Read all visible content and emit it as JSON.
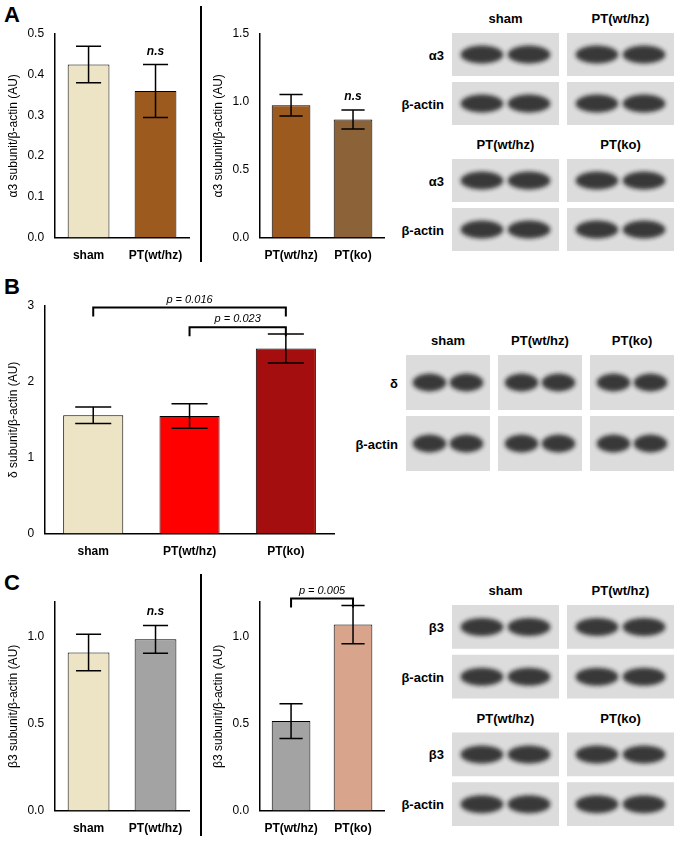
{
  "chart_data": [
    {
      "type": "bar",
      "y_label": "α3 subunit/β-actin (AU)",
      "categories": [
        "sham",
        "PT(wt/hz)"
      ],
      "values": [
        0.425,
        0.36
      ],
      "errors": [
        0.045,
        0.065
      ],
      "colors": [
        "#ede4c6",
        "#9c5a1f"
      ],
      "ylim": [
        0,
        0.5
      ],
      "yticks": [
        {
          "value": 0,
          "label": "0.0"
        },
        0.1,
        0.2,
        0.3,
        0.4,
        0.5
      ],
      "grid": false,
      "annotations": [
        {
          "text": "n.s"
        }
      ]
    },
    {
      "type": "bar",
      "y_label": "α3 subunit/β-actin (AU)",
      "categories": [
        "PT(wt/hz)",
        "PT(ko)"
      ],
      "values": [
        0.975,
        0.87
      ],
      "errors": [
        0.08,
        0.07
      ],
      "colors": [
        "#9c5a1f",
        "#8c6238"
      ],
      "ylim": [
        0,
        1.5
      ],
      "yticks": [
        {
          "value": 0,
          "label": "0.0"
        },
        0.5,
        {
          "value": 1,
          "label": "1.0"
        },
        1.5
      ],
      "grid": false,
      "annotations": [
        {
          "text": "n.s"
        }
      ]
    },
    {
      "type": "bar",
      "y_label": "δ subunit/β-actin (AU)",
      "categories": [
        "sham",
        "PT(wt/hz)",
        "PT(ko)"
      ],
      "values": [
        1.56,
        1.55,
        2.44
      ],
      "errors": [
        0.11,
        0.16,
        0.19
      ],
      "colors": [
        "#ede4c6",
        "#ff0000",
        "#a50e0e"
      ],
      "ylim": [
        0,
        3
      ],
      "yticks": [
        0,
        1,
        2,
        3
      ],
      "grid": false,
      "annotations": [
        {
          "text": "p = 0.016",
          "from": "sham",
          "to": "PT(ko)",
          "y": 2.98
        },
        {
          "text": "p = 0.023",
          "from": "PT(wt/hz)",
          "to": "PT(ko)",
          "y": 2.72
        }
      ]
    },
    {
      "type": "bar",
      "y_label": "β3 subunit/β-actin (AU)",
      "categories": [
        "sham",
        "PT(wt/hz)"
      ],
      "values": [
        0.91,
        0.985
      ],
      "errors": [
        0.105,
        0.08
      ],
      "colors": [
        "#ede4c6",
        "#a3a3a3"
      ],
      "ylim": [
        0,
        1.2
      ],
      "yticks": [
        {
          "value": 0,
          "label": "0.0"
        },
        0.5,
        {
          "value": 1,
          "label": "1.0"
        }
      ],
      "grid": false,
      "annotations": [
        {
          "text": "n.s"
        }
      ]
    },
    {
      "type": "bar",
      "y_label": "β3 subunit/β-actin (AU)",
      "categories": [
        "PT(wt/hz)",
        "PT(ko)"
      ],
      "values": [
        0.515,
        1.07
      ],
      "errors": [
        0.1,
        0.11
      ],
      "colors": [
        "#a3a3a3",
        "#d8a48c"
      ],
      "ylim": [
        0,
        1.2
      ],
      "yticks": [
        {
          "value": 0,
          "label": "0.0"
        },
        0.5,
        {
          "value": 1,
          "label": "1.0"
        }
      ],
      "grid": false,
      "annotations": [
        {
          "text": "p = 0.005",
          "from": "PT(wt/hz)",
          "to": "PT(ko)",
          "y": 1.22
        }
      ]
    }
  ],
  "panels": [
    {
      "letter": "A",
      "blots": [
        {
          "groups": [
            "sham",
            "PT(wt/hz)"
          ],
          "rows": [
            "α3",
            "β-actin"
          ]
        },
        {
          "groups": [
            "PT(wt/hz)",
            "PT(ko)"
          ],
          "rows": [
            "α3",
            "β-actin"
          ]
        }
      ]
    },
    {
      "letter": "B",
      "blots": [
        {
          "groups": [
            "sham",
            "PT(wt/hz)",
            "PT(ko)"
          ],
          "rows": [
            "δ",
            "β-actin"
          ]
        }
      ]
    },
    {
      "letter": "C",
      "blots": [
        {
          "groups": [
            "sham",
            "PT(wt/hz)"
          ],
          "rows": [
            "β3",
            "β-actin"
          ]
        },
        {
          "groups": [
            "PT(wt/hz)",
            "PT(ko)"
          ],
          "rows": [
            "β3",
            "β-actin"
          ]
        }
      ]
    }
  ]
}
